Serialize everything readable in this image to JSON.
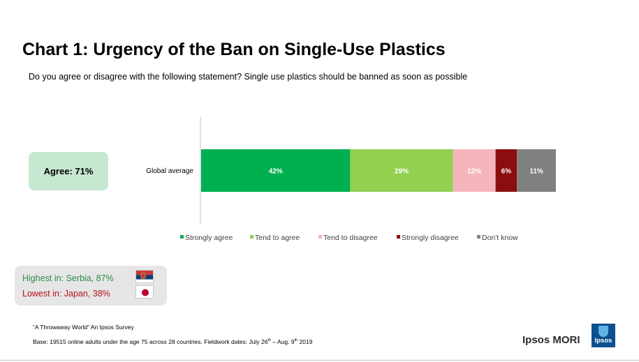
{
  "chart_data": {
    "type": "bar",
    "orientation": "horizontal",
    "stacked": true,
    "title": "Chart 1: Urgency of the Ban on Single-Use Plastics",
    "subtitle": "Do you agree or disagree with the following statement? Single use plastics should be banned as soon as possible",
    "categories": [
      "Global average"
    ],
    "series": [
      {
        "name": "Strongly agree",
        "values": [
          42
        ],
        "label": "42%",
        "color": "#00b050"
      },
      {
        "name": "Tend to agree",
        "values": [
          29
        ],
        "label": "29%",
        "color": "#92d050"
      },
      {
        "name": "Tend to disagree",
        "values": [
          12
        ],
        "label": "12%",
        "color": "#f4b6bc"
      },
      {
        "name": "Strongly disagree",
        "values": [
          6
        ],
        "label": "6%",
        "color": "#8b0d0d"
      },
      {
        "name": "Don't know",
        "values": [
          11
        ],
        "label": "11%",
        "color": "#808080"
      }
    ],
    "xlim": [
      0,
      100
    ],
    "legend": "bottom"
  },
  "agree_label": "Agree: 71%",
  "extremes": {
    "highest": "Highest in: Serbia, 87%",
    "lowest": "Lowest in: Japan, 38%",
    "highest_color": "#2e8b4a",
    "lowest_color": "#b5121b"
  },
  "footer": {
    "source": "“A Throwaway World” An Ipsos Survey",
    "base_prefix": "Base: 19515 online adults under the age 75 across 28 countries. Fieldwork dates: July 26",
    "base_sup1": "th",
    "base_mid": " – Aug. 9",
    "base_sup2": "th",
    "base_suffix": " 2019"
  },
  "brand": {
    "name": "Ipsos MORI",
    "logo_text": "Ipsos"
  }
}
